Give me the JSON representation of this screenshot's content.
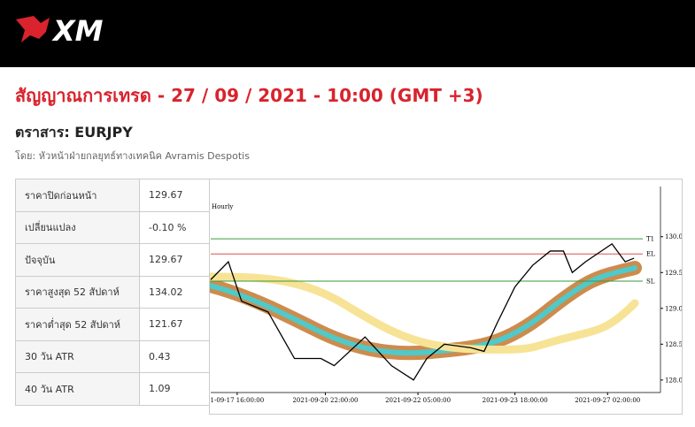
{
  "header": {
    "logo": "XM"
  },
  "title": "สัญญาณการเทรด - 27 / 09 / 2021 - 10:00 (GMT +3)",
  "instrument": "ตราสาร: EURJPY",
  "author": "โดย: หัวหน้าฝ่ายกลยุทธ์ทางเทคนิค Avramis Despotis",
  "table": {
    "rows": [
      [
        "ราคาปิดก่อนหน้า",
        "129.67"
      ],
      [
        "เปลี่ยนแปลง",
        "-0.10 %"
      ],
      [
        "ปัจจุบัน",
        "129.67"
      ],
      [
        "ราคาสูงสุด 52 สัปดาห์",
        "134.02"
      ],
      [
        "ราคาต่ำสุด 52 สัปดาห์",
        "121.67"
      ],
      [
        "30 วัน ATR",
        "0.43"
      ],
      [
        "40 วัน ATR",
        "1.09"
      ]
    ]
  },
  "chart_data": {
    "type": "line",
    "subtitle": "Hourly",
    "x": [
      0,
      4,
      7,
      13,
      19,
      25,
      28,
      35,
      41,
      46,
      49,
      53,
      59,
      62,
      65,
      69,
      73,
      77,
      80,
      82,
      85,
      91,
      94,
      96
    ],
    "series": [
      {
        "name": "EURJPY",
        "color": "#000000",
        "values": [
          129.4,
          129.65,
          129.1,
          128.95,
          128.3,
          128.3,
          128.2,
          128.6,
          128.2,
          128.0,
          128.3,
          128.5,
          128.45,
          128.4,
          128.8,
          129.3,
          129.6,
          129.8,
          129.8,
          129.5,
          129.65,
          129.9,
          129.65,
          129.7
        ]
      }
    ],
    "levels": [
      {
        "name": "T1",
        "value": 129.97,
        "color": "#3a9a3a"
      },
      {
        "name": "EL",
        "value": 129.76,
        "color": "#d9534f"
      },
      {
        "name": "SL",
        "value": 129.38,
        "color": "#3a9a3a"
      }
    ],
    "xlim": [
      0,
      102
    ],
    "xticks": [
      {
        "value": 6,
        "label": "1-09-17 16:00:00"
      },
      {
        "value": 26,
        "label": "2021-09-20 22:00:00"
      },
      {
        "value": 47,
        "label": "2021-09-22 05:00:00"
      },
      {
        "value": 69,
        "label": "2021-09-23 18:00:00"
      },
      {
        "value": 90,
        "label": "2021-09-27 02:00:00"
      }
    ],
    "ylim": [
      127.85,
      130.7
    ],
    "yticks": [
      {
        "value": 128,
        "label": "128.00"
      },
      {
        "value": 128.5,
        "label": "128.50"
      },
      {
        "value": 129,
        "label": "129.00"
      },
      {
        "value": 129.5,
        "label": "129.50"
      },
      {
        "value": 130,
        "label": "130.00"
      }
    ]
  }
}
